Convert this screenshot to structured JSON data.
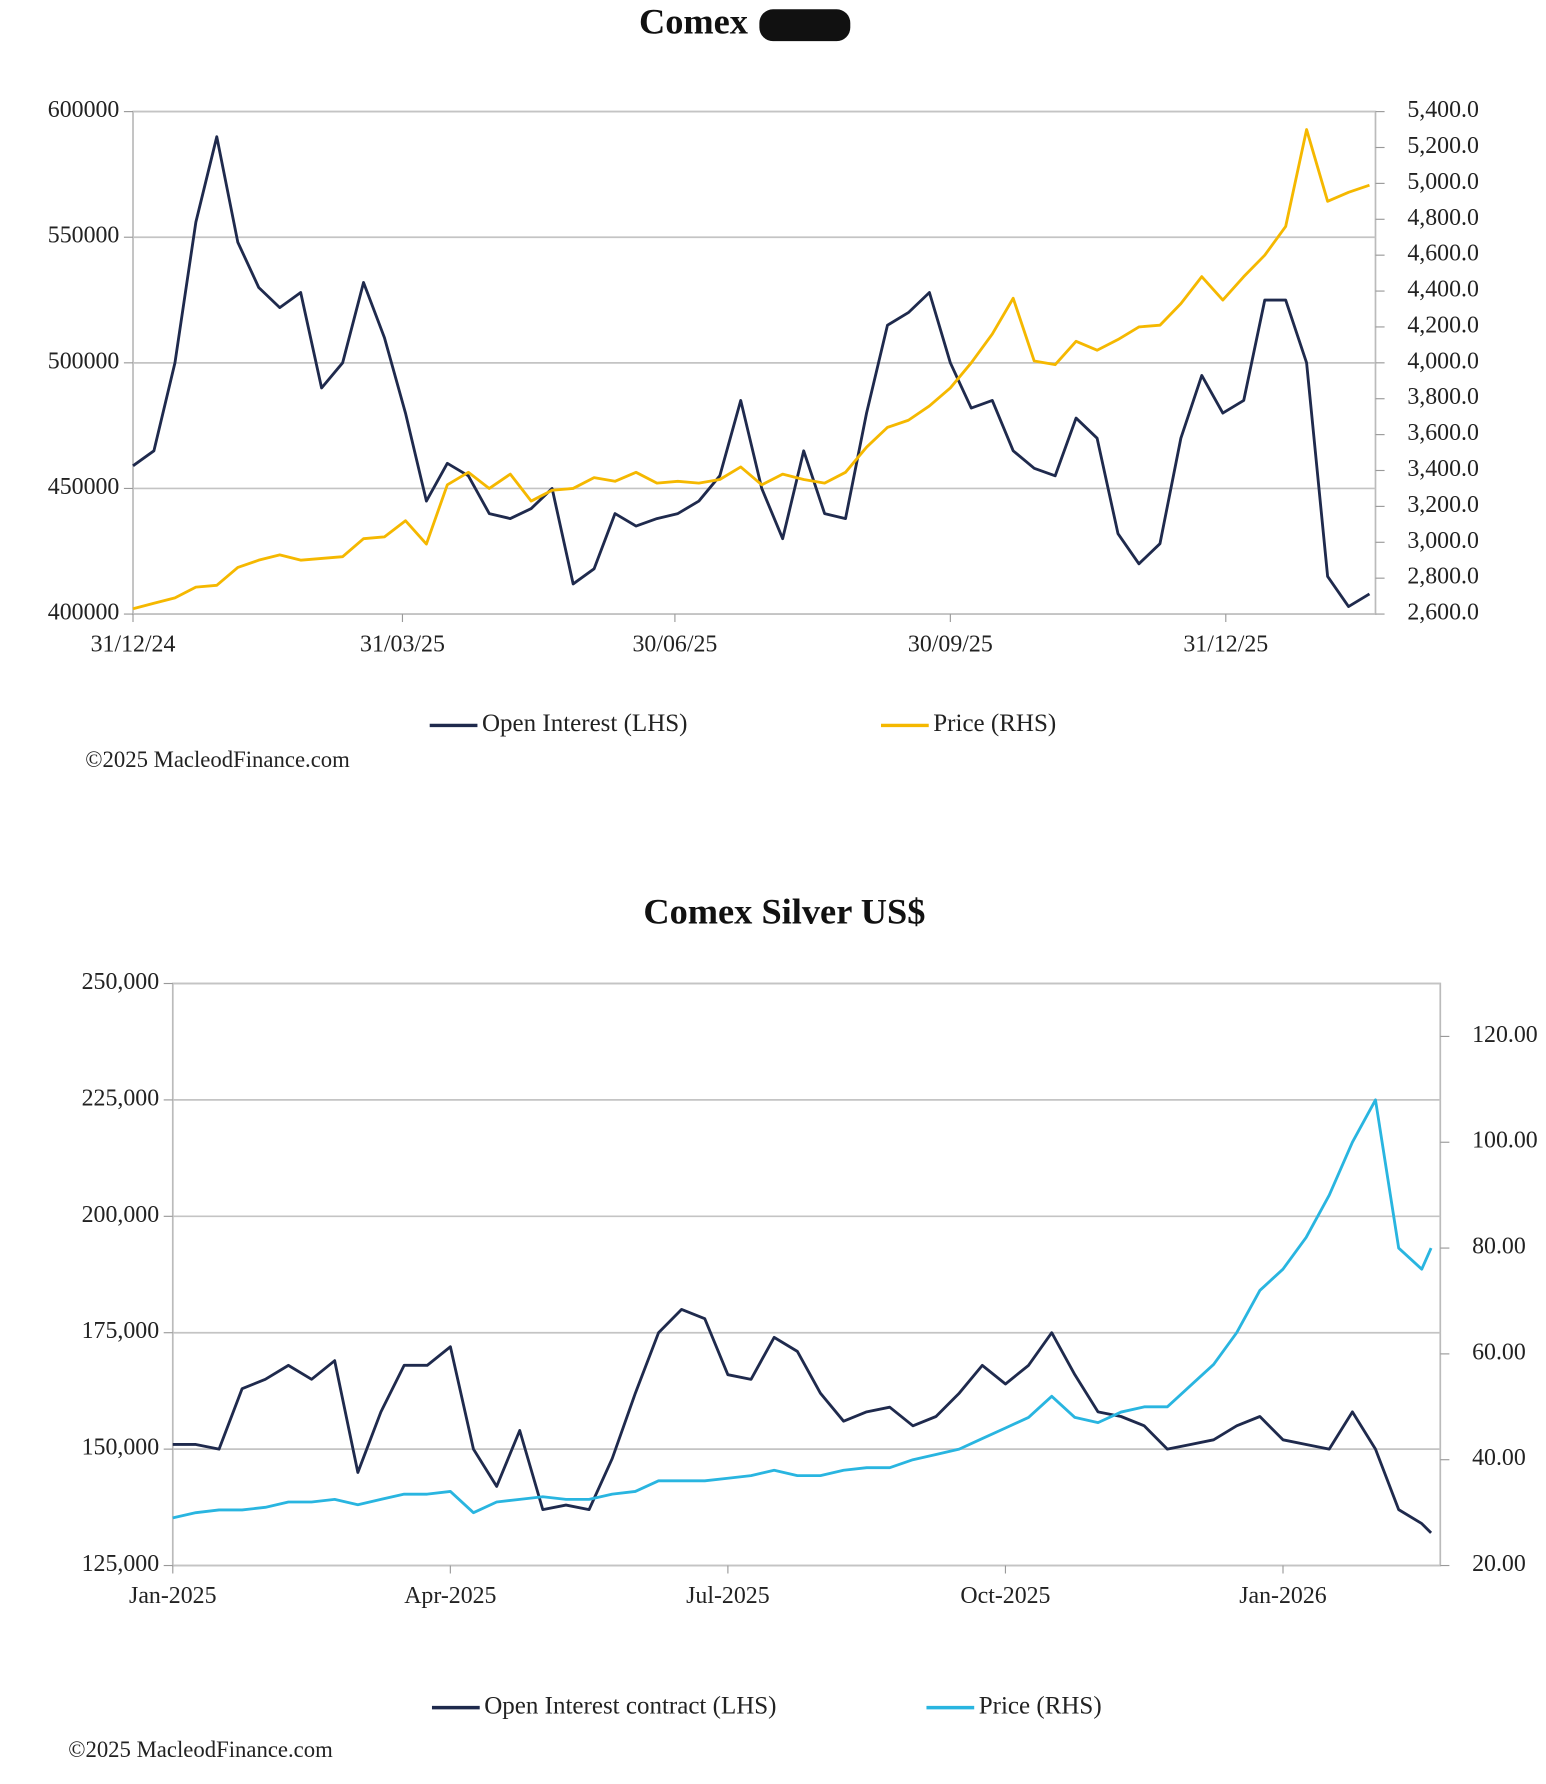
{
  "chart_data": [
    {
      "type": "line",
      "title": "Comex",
      "x": [
        "31/12/24",
        "07/01/25",
        "14/01/25",
        "21/01/25",
        "28/01/25",
        "04/02/25",
        "11/02/25",
        "18/02/25",
        "25/02/25",
        "04/03/25",
        "11/03/25",
        "18/03/25",
        "25/03/25",
        "01/04/25",
        "08/04/25",
        "15/04/25",
        "22/04/25",
        "29/04/25",
        "06/05/25",
        "13/05/25",
        "20/05/25",
        "27/05/25",
        "03/06/25",
        "10/06/25",
        "17/06/25",
        "24/06/25",
        "01/07/25",
        "08/07/25",
        "15/07/25",
        "22/07/25",
        "29/07/25",
        "05/08/25",
        "12/08/25",
        "19/08/25",
        "26/08/25",
        "02/09/25",
        "09/09/25",
        "16/09/25",
        "23/09/25",
        "30/09/25",
        "07/10/25",
        "14/10/25",
        "21/10/25",
        "28/10/25",
        "04/11/25",
        "11/11/25",
        "18/11/25",
        "25/11/25",
        "02/12/25",
        "09/12/25",
        "16/12/25",
        "23/12/25",
        "30/12/25",
        "06/01/26",
        "13/01/26",
        "20/01/26",
        "27/01/26",
        "03/02/26",
        "10/02/26",
        "17/02/26"
      ],
      "series": [
        {
          "name": "Open Interest (LHS)",
          "color": "#1f2a4d",
          "axis": "y",
          "values": [
            459000,
            465000,
            500000,
            556000,
            590000,
            548000,
            530000,
            522000,
            528000,
            490000,
            500000,
            532000,
            510000,
            480000,
            445000,
            460000,
            455000,
            440000,
            438000,
            442000,
            450000,
            412000,
            418000,
            440000,
            435000,
            438000,
            440000,
            445000,
            455000,
            485000,
            450000,
            430000,
            465000,
            440000,
            438000,
            480000,
            515000,
            520000,
            528000,
            500000,
            482000,
            485000,
            465000,
            458000,
            455000,
            478000,
            470000,
            432000,
            420000,
            428000,
            470000,
            495000,
            480000,
            485000,
            525000,
            525000,
            500000,
            415000,
            403000,
            408000
          ]
        },
        {
          "name": "Price (RHS)",
          "color": "#f5b800",
          "axis": "y2",
          "values": [
            2630,
            2660,
            2690,
            2750,
            2760,
            2860,
            2900,
            2930,
            2900,
            2910,
            2920,
            3020,
            3030,
            3120,
            2990,
            3320,
            3390,
            3300,
            3380,
            3230,
            3290,
            3300,
            3360,
            3340,
            3390,
            3330,
            3340,
            3330,
            3350,
            3420,
            3320,
            3380,
            3350,
            3330,
            3390,
            3530,
            3640,
            3680,
            3760,
            3860,
            4000,
            4160,
            4360,
            4010,
            3990,
            4120,
            4070,
            4130,
            4200,
            4210,
            4330,
            4480,
            4350,
            4480,
            4600,
            4760,
            5300,
            4900,
            4950,
            4990
          ]
        }
      ],
      "xlim": [
        "31/12/24",
        "19/02/26"
      ],
      "xticks": [
        "31/12/24",
        "31/03/25",
        "30/06/25",
        "30/09/25",
        "31/12/25"
      ],
      "ylim": [
        400000,
        600000
      ],
      "yticks": [
        400000,
        450000,
        500000,
        550000,
        600000
      ],
      "y2lim": [
        2600,
        5400
      ],
      "y2ticks": [
        {
          "value": 2600,
          "label": "2,600.0"
        },
        {
          "value": 2800,
          "label": "2,800.0"
        },
        {
          "value": 3000,
          "label": "3,000.0"
        },
        {
          "value": 3200,
          "label": "3,200.0"
        },
        {
          "value": 3400,
          "label": "3,400.0"
        },
        {
          "value": 3600,
          "label": "3,600.0"
        },
        {
          "value": 3800,
          "label": "3,800.0"
        },
        {
          "value": 4000,
          "label": "4,000.0"
        },
        {
          "value": 4200,
          "label": "4,200.0"
        },
        {
          "value": 4400,
          "label": "4,400.0"
        },
        {
          "value": 4600,
          "label": "4,600.0"
        },
        {
          "value": 4800,
          "label": "4,800.0"
        },
        {
          "value": 5000,
          "label": "5,000.0"
        },
        {
          "value": 5200,
          "label": "5,200.0"
        },
        {
          "value": 5400,
          "label": "5,400.0"
        }
      ],
      "grid": true,
      "legend": "bottom",
      "source": "©2025 MacleodFinance.com"
    },
    {
      "type": "line",
      "title": "Comex Silver US$",
      "x": [
        0,
        0.25,
        0.5,
        0.75,
        1,
        1.25,
        1.5,
        1.75,
        2,
        2.25,
        2.5,
        2.75,
        3,
        3.25,
        3.5,
        3.75,
        4,
        4.25,
        4.5,
        4.75,
        5,
        5.25,
        5.5,
        5.75,
        6,
        6.25,
        6.5,
        6.75,
        7,
        7.25,
        7.5,
        7.75,
        8,
        8.25,
        8.5,
        8.75,
        9,
        9.25,
        9.5,
        9.75,
        10,
        10.25,
        10.5,
        10.75,
        11,
        11.25,
        11.5,
        11.75,
        12,
        12.25,
        12.5,
        12.75,
        13,
        13.25,
        13.5,
        13.6
      ],
      "series": [
        {
          "name": "Open Interest contract (LHS)",
          "color": "#1f2a4d",
          "axis": "y",
          "values": [
            151000,
            151000,
            150000,
            163000,
            165000,
            168000,
            165000,
            169000,
            145000,
            158000,
            168000,
            168000,
            172000,
            150000,
            142000,
            154000,
            137000,
            138000,
            137000,
            148000,
            162000,
            175000,
            180000,
            178000,
            166000,
            165000,
            174000,
            171000,
            162000,
            156000,
            158000,
            159000,
            155000,
            157000,
            162000,
            168000,
            164000,
            168000,
            175000,
            166000,
            158000,
            157000,
            155000,
            150000,
            151000,
            152000,
            155000,
            157000,
            152000,
            151000,
            150000,
            158000,
            150000,
            137000,
            134000,
            132000
          ]
        },
        {
          "name": "Price (RHS)",
          "color": "#29b5e0",
          "axis": "y2",
          "values": [
            29,
            30,
            30.5,
            30.5,
            31,
            32,
            32,
            32.5,
            31.5,
            32.5,
            33.5,
            33.5,
            34,
            30,
            32,
            32.5,
            33,
            32.5,
            32.5,
            33.5,
            34,
            36,
            36,
            36,
            36.5,
            37,
            38,
            37,
            37,
            38,
            38.5,
            38.5,
            40,
            41,
            42,
            44,
            46,
            48,
            52,
            48,
            47,
            49,
            50,
            50,
            54,
            58,
            64,
            72,
            76,
            82,
            90,
            100,
            108,
            80,
            76,
            80
          ]
        }
      ],
      "xlim": [
        0,
        13.7
      ],
      "xticks": [
        {
          "value": 0,
          "label": "Jan-2025"
        },
        {
          "value": 3,
          "label": "Apr-2025"
        },
        {
          "value": 6,
          "label": "Jul-2025"
        },
        {
          "value": 9,
          "label": "Oct-2025"
        },
        {
          "value": 12,
          "label": "Jan-2026"
        }
      ],
      "ylim": [
        125000,
        250000
      ],
      "yticks": [
        {
          "value": 125000,
          "label": "125,000"
        },
        {
          "value": 150000,
          "label": "150,000"
        },
        {
          "value": 175000,
          "label": "175,000"
        },
        {
          "value": 200000,
          "label": "200,000"
        },
        {
          "value": 225000,
          "label": "225,000"
        },
        {
          "value": 250000,
          "label": "250,000"
        }
      ],
      "y2lim": [
        20,
        130
      ],
      "y2ticks": [
        {
          "value": 20,
          "label": "20.00"
        },
        {
          "value": 40,
          "label": "40.00"
        },
        {
          "value": 60,
          "label": "60.00"
        },
        {
          "value": 80,
          "label": "80.00"
        },
        {
          "value": 100,
          "label": "100.00"
        },
        {
          "value": 120,
          "label": "120.00"
        }
      ],
      "grid": true,
      "legend": "bottom",
      "source": "©2025 MacleodFinance.com"
    }
  ]
}
